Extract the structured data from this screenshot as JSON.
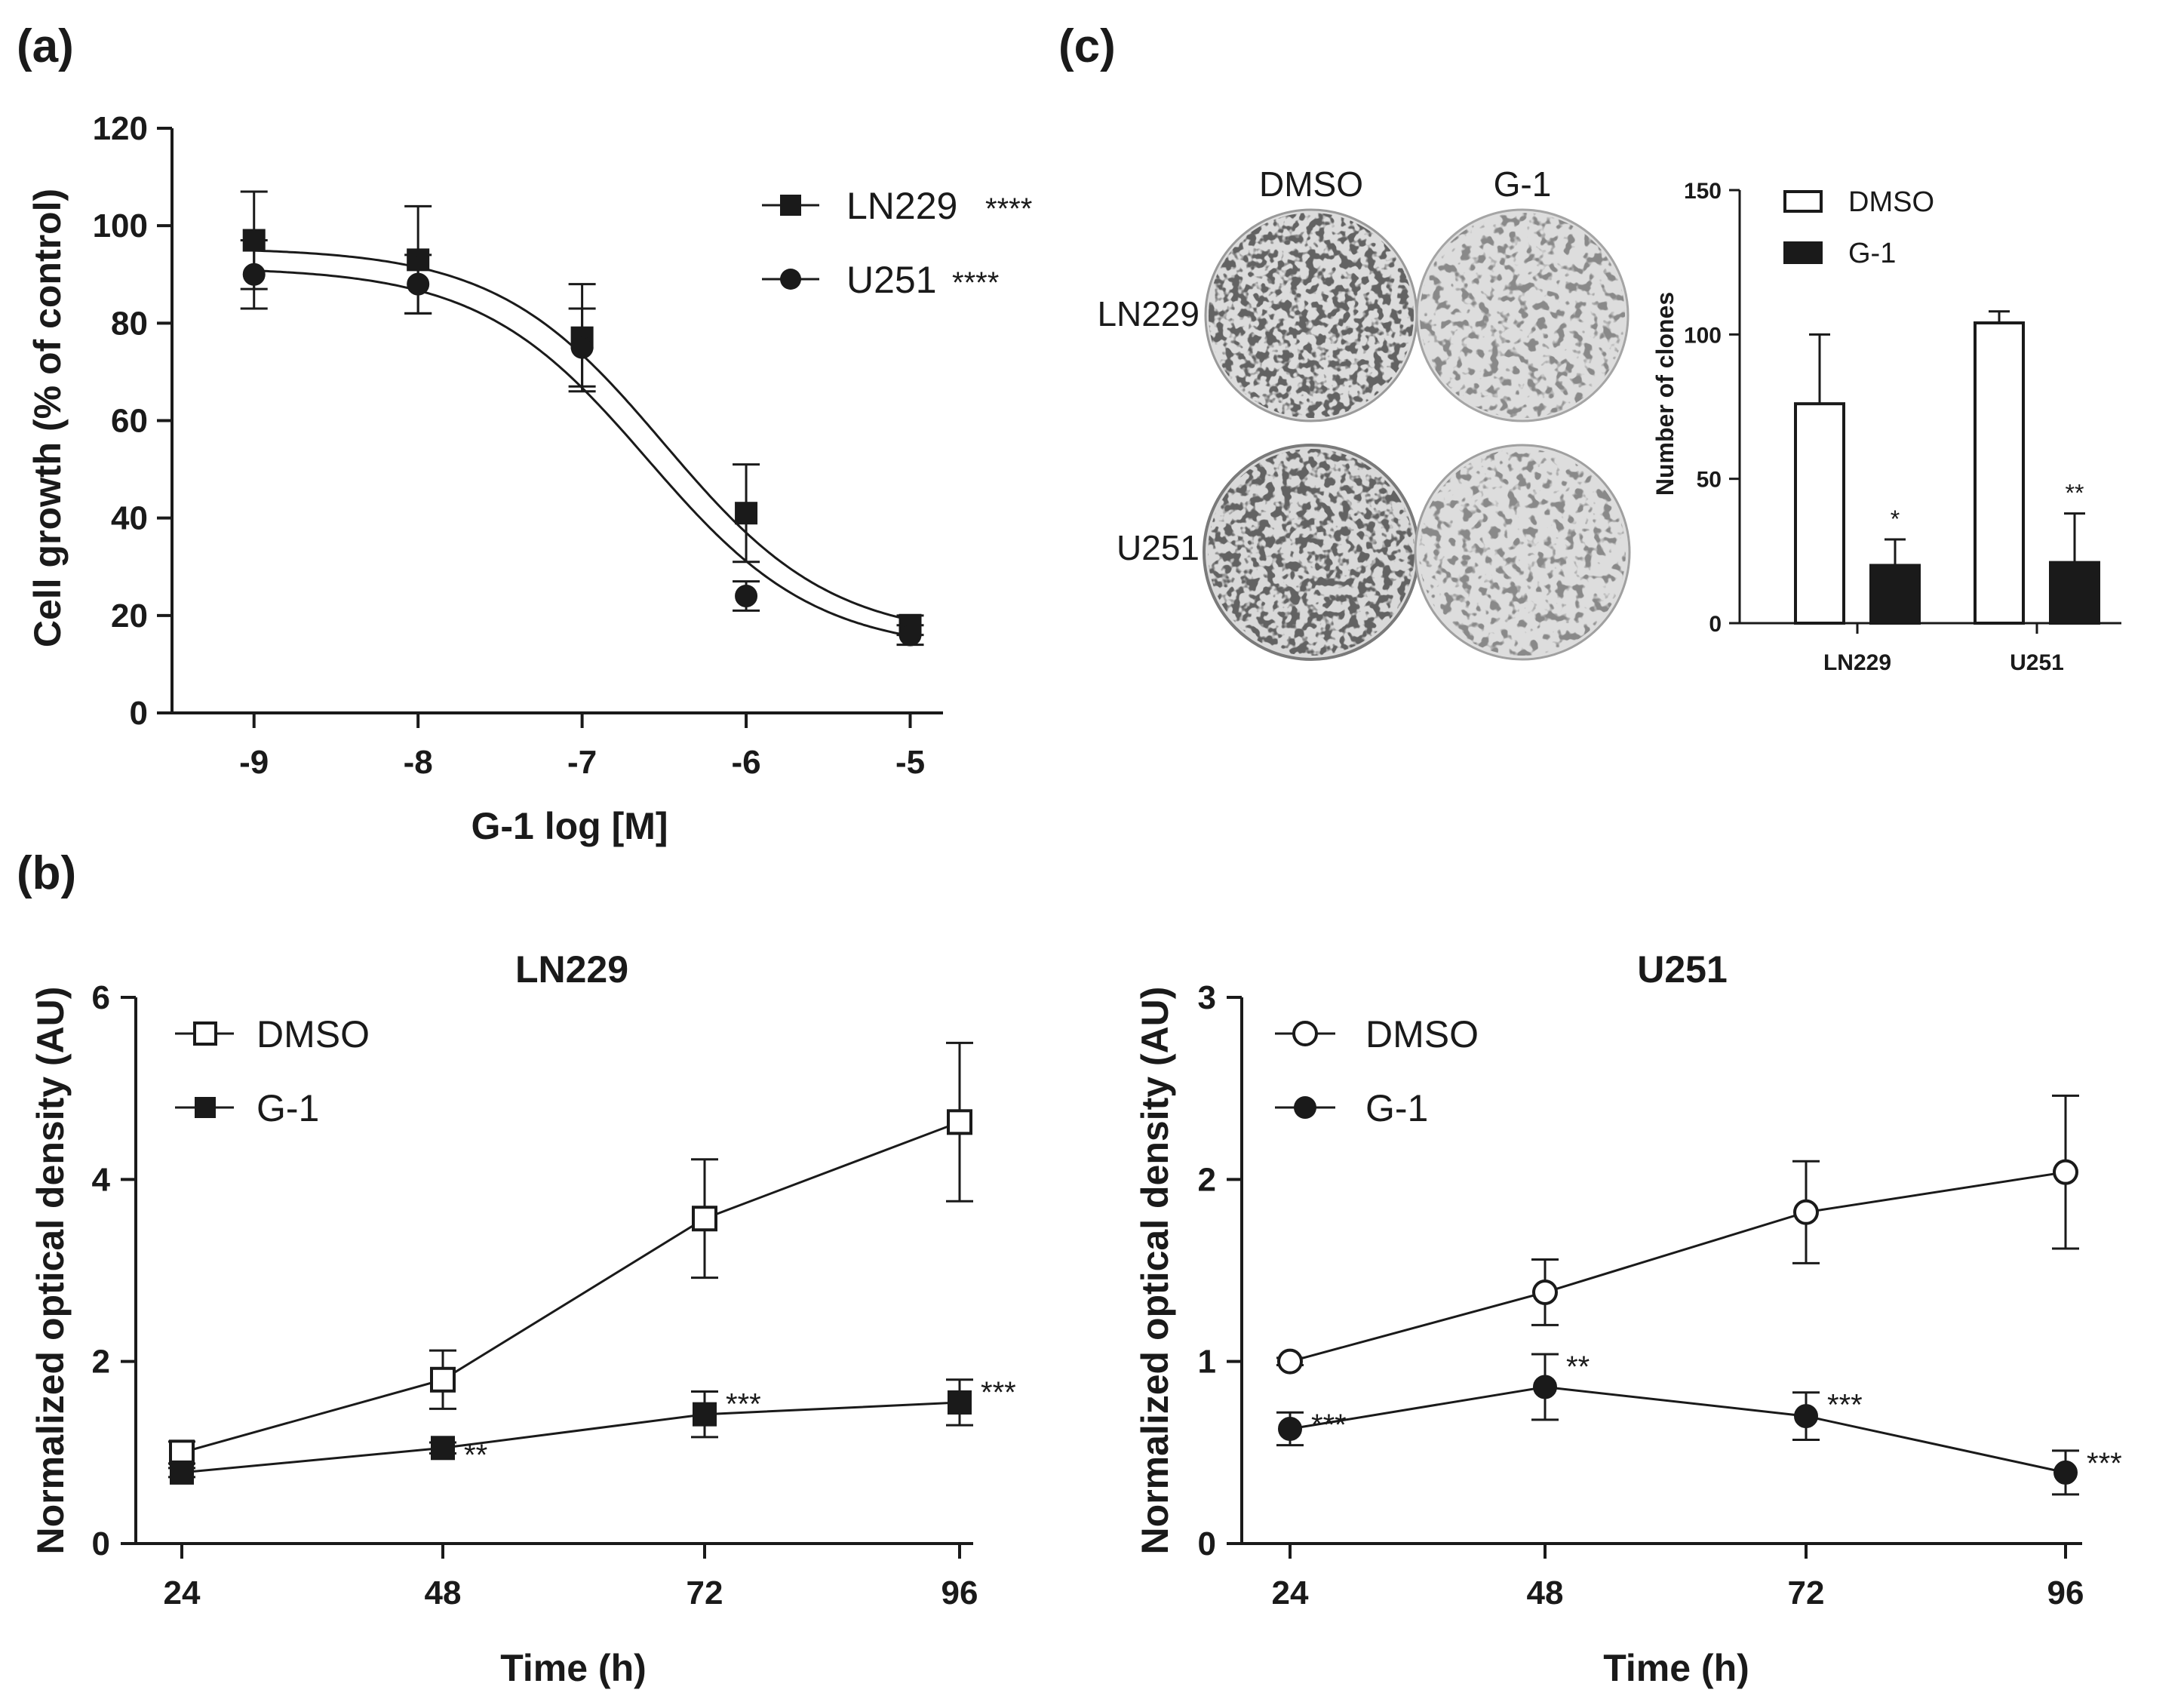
{
  "panels": {
    "a": {
      "letter": "(a)",
      "chart_data": {
        "type": "scatter",
        "title": "",
        "xlabel": "G-1 log [M]",
        "ylabel": "Cell growth (% of control)",
        "xlim": [
          -9.5,
          -4.8
        ],
        "ylim": [
          0,
          120
        ],
        "x_ticks": [
          "-9",
          "-8",
          "-7",
          "-6",
          "-5"
        ],
        "y_ticks": [
          "0",
          "20",
          "40",
          "60",
          "80",
          "100",
          "120"
        ],
        "fitted_curves": true,
        "series": [
          {
            "name": "LN229",
            "significance": "****",
            "marker": "filled-square",
            "x": [
              -9,
              -8,
              -7,
              -6,
              -5
            ],
            "y": [
              97,
              93,
              77,
              41,
              18
            ],
            "err": [
              10,
              11,
              11,
              10,
              2
            ],
            "fit": {
              "top": 95.5,
              "bottom": 15,
              "logEC50": -6.5,
              "hill": 0.85
            }
          },
          {
            "name": "U251",
            "significance": "****",
            "marker": "filled-circle",
            "x": [
              -9,
              -8,
              -7,
              -6,
              -5
            ],
            "y": [
              90,
              88,
              75,
              24,
              16
            ],
            "err": [
              7,
              6,
              8,
              3,
              2
            ],
            "fit": {
              "top": 91.5,
              "bottom": 12.5,
              "logEC50": -6.6,
              "hill": 0.85
            }
          }
        ]
      }
    },
    "b_left": {
      "letter": "(b)",
      "chart_data": {
        "type": "line",
        "title": "LN229",
        "xlabel": "Time (h)",
        "ylabel": "Normalized optical density (AU)",
        "x": [
          24,
          48,
          72,
          96
        ],
        "x_ticks": [
          "24",
          "48",
          "72",
          "96"
        ],
        "y_ticks": [
          "0",
          "2",
          "4",
          "6"
        ],
        "ylim": [
          0,
          6
        ],
        "series": [
          {
            "name": "DMSO",
            "marker": "open-square",
            "values": [
              1.0,
              1.8,
              3.57,
              4.63
            ],
            "err": [
              0.12,
              0.32,
              0.65,
              0.87
            ],
            "stars": [
              "",
              "",
              "",
              ""
            ]
          },
          {
            "name": "G-1",
            "marker": "filled-square",
            "values": [
              0.78,
              1.05,
              1.42,
              1.55
            ],
            "err": [
              0.05,
              0.06,
              0.25,
              0.25
            ],
            "stars": [
              "",
              "**",
              "***",
              "***"
            ]
          }
        ]
      }
    },
    "b_right": {
      "chart_data": {
        "type": "line",
        "title": "U251",
        "xlabel": "Time (h)",
        "ylabel": "Normalized optical density (AU)",
        "x": [
          24,
          48,
          72,
          96
        ],
        "x_ticks": [
          "24",
          "48",
          "72",
          "96"
        ],
        "y_ticks": [
          "0",
          "1",
          "2",
          "3"
        ],
        "ylim": [
          0,
          3
        ],
        "series": [
          {
            "name": "DMSO",
            "marker": "open-circle",
            "values": [
              1.0,
              1.38,
              1.82,
              2.04
            ],
            "err": [
              0.02,
              0.18,
              0.28,
              0.42
            ],
            "stars": [
              "",
              "",
              "",
              ""
            ]
          },
          {
            "name": "G-1",
            "marker": "filled-circle",
            "values": [
              0.63,
              0.86,
              0.7,
              0.39
            ],
            "err": [
              0.09,
              0.18,
              0.13,
              0.12
            ],
            "stars": [
              "***",
              "**",
              "***",
              "***"
            ]
          }
        ]
      }
    },
    "c": {
      "letter": "(c)",
      "dishes": {
        "columns": [
          "DMSO",
          "G-1"
        ],
        "rows": [
          "LN229",
          "U251"
        ]
      },
      "chart_data": {
        "type": "bar",
        "title": "",
        "xlabel": "",
        "ylabel": "Number of clones",
        "categories": [
          "LN229",
          "U251"
        ],
        "y_ticks": [
          "0",
          "50",
          "100",
          "150"
        ],
        "ylim": [
          0,
          150
        ],
        "series": [
          {
            "name": "DMSO",
            "fill": "open",
            "values": [
              76,
              104
            ],
            "err": [
              24,
              4
            ],
            "stars": [
              "",
              ""
            ]
          },
          {
            "name": "G-1",
            "fill": "filled",
            "values": [
              20,
              21
            ],
            "err": [
              9,
              17
            ],
            "stars": [
              "*",
              "**"
            ]
          }
        ]
      }
    }
  }
}
